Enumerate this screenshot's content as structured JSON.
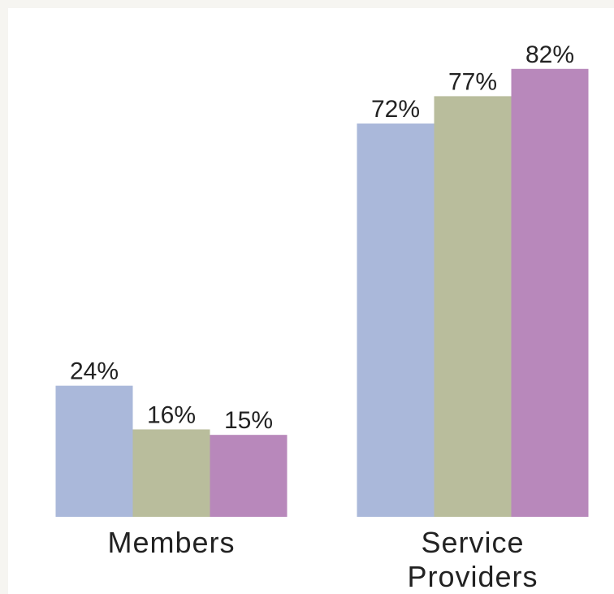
{
  "chart_data": {
    "type": "bar",
    "categories": [
      "Members",
      "Service Providers"
    ],
    "series": [
      {
        "color": "#aab8da",
        "values": [
          24,
          72
        ],
        "value_labels": [
          "24%",
          "72%"
        ]
      },
      {
        "color": "#b9bd9c",
        "values": [
          16,
          77
        ],
        "value_labels": [
          "16%",
          "77%"
        ]
      },
      {
        "color": "#b888bb",
        "values": [
          15,
          82
        ],
        "value_labels": [
          "15%",
          "82%"
        ]
      }
    ],
    "ylim": [
      0,
      90
    ]
  }
}
